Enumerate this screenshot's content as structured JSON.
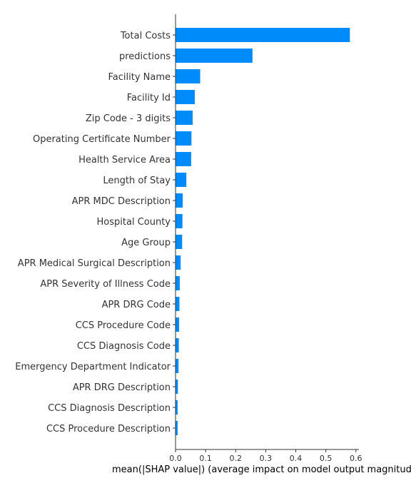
{
  "chart_data": {
    "type": "bar",
    "orientation": "horizontal",
    "xlabel": "mean(|SHAP value|) (average impact on model output magnitude)",
    "xlim": [
      0,
      0.61
    ],
    "xticks": [
      "0.0",
      "0.1",
      "0.2",
      "0.3",
      "0.4",
      "0.5",
      "0.6"
    ],
    "grid": false,
    "bar_color": "#008bfb",
    "categories": [
      "Total Costs",
      "predictions",
      "Facility Name",
      "Facility Id",
      "Zip Code - 3 digits",
      "Operating Certificate Number",
      "Health Service Area",
      "Length of Stay",
      "APR MDC Description",
      "Hospital County",
      "Age Group",
      "APR Medical Surgical Description",
      "APR Severity of Illness Code",
      "APR DRG Code",
      "CCS Procedure Code",
      "CCS Diagnosis Code",
      "Emergency Department Indicator",
      "APR DRG Description",
      "CCS Diagnosis Description",
      "CCS Procedure Description"
    ],
    "values": [
      0.58,
      0.256,
      0.082,
      0.064,
      0.057,
      0.053,
      0.052,
      0.036,
      0.024,
      0.023,
      0.022,
      0.017,
      0.014,
      0.013,
      0.012,
      0.011,
      0.01,
      0.008,
      0.007,
      0.007
    ]
  }
}
